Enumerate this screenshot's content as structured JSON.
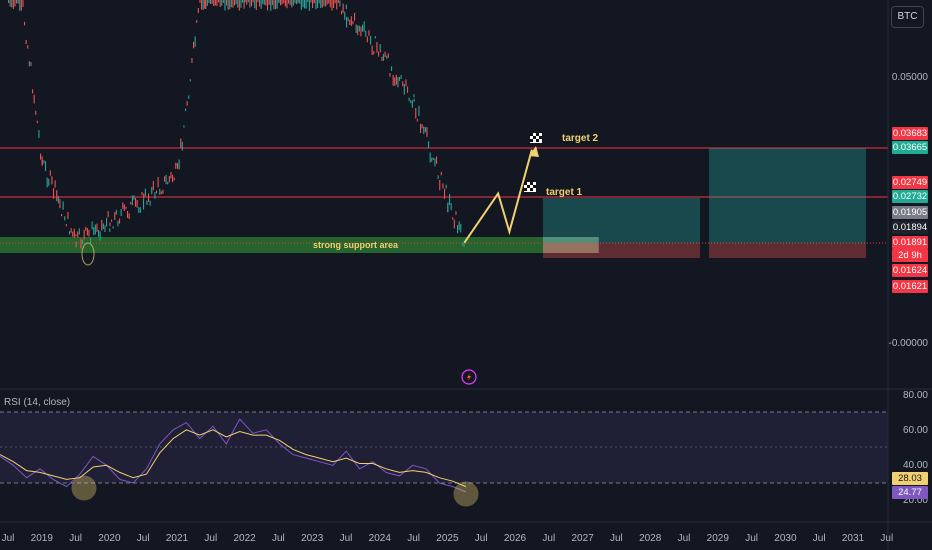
{
  "symbol": "BTC",
  "rsi_label": "RSI (14, close)",
  "annotations": {
    "target2": "target 2",
    "target1": "target 1",
    "support": "strong support area"
  },
  "price_badges": [
    {
      "text": "0.03683",
      "color": "#f23645"
    },
    {
      "text": "0.03665",
      "color": "#22ab94"
    },
    {
      "text": "0.02749",
      "color": "#f23645"
    },
    {
      "text": "0.02732",
      "color": "#22ab94"
    },
    {
      "text": "0.01905",
      "color": "#787b86"
    },
    {
      "text": "0.01894",
      "color": "#1e222d"
    },
    {
      "text": "0.01891",
      "color": "#f23645"
    },
    {
      "text": "2d 9h",
      "color": "#f23645"
    },
    {
      "text": "0.01624",
      "color": "#f23645"
    },
    {
      "text": "0.01621",
      "color": "#f23645"
    }
  ],
  "rsi_badges": [
    {
      "text": "28.03",
      "color": "#f0d070"
    },
    {
      "text": "24.77",
      "color": "#7e57c2"
    }
  ],
  "colors": {
    "up": "#26a69a",
    "down": "#ef5350",
    "rsi": "#7e57c2",
    "rsi_ma": "#f0d070",
    "support": "#2e7d32",
    "target_line": "#f23645",
    "arrow": "#f0d070"
  },
  "chart_data": [
    {
      "type": "candlestick",
      "title": "BTC",
      "price_ticks": [
        "0.05000",
        "-0.00000"
      ],
      "x_ticks": [
        "Jul",
        "2019",
        "Jul",
        "2020",
        "Jul",
        "2021",
        "Jul",
        "2022",
        "Jul",
        "2023",
        "Jul",
        "2024",
        "Jul",
        "2025",
        "Jul",
        "2026",
        "Jul",
        "2027",
        "Jul",
        "2028",
        "Jul",
        "2029",
        "Jul",
        "2030",
        "Jul",
        "2031",
        "Jul"
      ],
      "horizontal_levels": [
        0.03683,
        0.02749
      ],
      "support_zone": [
        0.0162,
        0.0189
      ],
      "path_points": [
        {
          "date": "2018-07",
          "price": 0.085
        },
        {
          "date": "2019-01",
          "price": 0.034
        },
        {
          "date": "2019-07",
          "price": 0.019
        },
        {
          "date": "2020-01",
          "price": 0.023
        },
        {
          "date": "2020-07",
          "price": 0.027
        },
        {
          "date": "2021-01",
          "price": 0.032
        },
        {
          "date": "2021-06",
          "price": 0.072
        },
        {
          "date": "2022-01",
          "price": 0.08
        },
        {
          "date": "2022-07",
          "price": 0.075
        },
        {
          "date": "2023-01",
          "price": 0.074
        },
        {
          "date": "2023-07",
          "price": 0.062
        },
        {
          "date": "2024-01",
          "price": 0.055
        },
        {
          "date": "2024-07",
          "price": 0.045
        },
        {
          "date": "2025-01",
          "price": 0.027
        },
        {
          "date": "2025-04",
          "price": 0.0189
        }
      ],
      "projection": [
        {
          "date": "2025-04",
          "price": 0.0189
        },
        {
          "date": "2025-10",
          "price": 0.0282
        },
        {
          "date": "2025-12",
          "price": 0.021
        },
        {
          "date": "2026-04",
          "price": 0.0365
        }
      ]
    },
    {
      "type": "line",
      "title": "RSI (14, close)",
      "y_ticks": [
        "80.00",
        "60.00",
        "40.00",
        "20.00"
      ],
      "levels": [
        70,
        50,
        30
      ],
      "series": [
        {
          "name": "RSI",
          "values": [
            45,
            40,
            33,
            38,
            32,
            28,
            35,
            45,
            40,
            32,
            30,
            38,
            52,
            60,
            64,
            55,
            62,
            52,
            66,
            58,
            60,
            52,
            46,
            44,
            42,
            40,
            48,
            38,
            42,
            36,
            34,
            40,
            38,
            30,
            28,
            25
          ]
        },
        {
          "name": "RSI-based MA",
          "values": [
            46,
            42,
            37,
            36,
            34,
            32,
            33,
            39,
            40,
            36,
            33,
            35,
            47,
            55,
            60,
            57,
            60,
            56,
            59,
            57,
            57,
            54,
            49,
            46,
            44,
            42,
            44,
            41,
            41,
            38,
            36,
            37,
            36,
            33,
            31,
            28
          ]
        }
      ]
    }
  ]
}
